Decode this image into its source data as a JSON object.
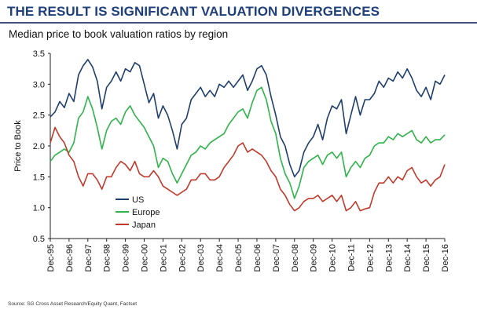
{
  "slide_title": "THE RESULT IS SIGNIFICANT VALUATION DIVERGENCES",
  "source": "Source: SG Cross Asset Research/Equity Quant, Factset",
  "colors": {
    "title": "#1f3f7a",
    "US": "#1f3e6e",
    "Europe": "#2fb34a",
    "Japan": "#c0392b"
  },
  "chart_data": {
    "type": "line",
    "title": "Median price to book valuation ratios by region",
    "ylabel": "Price to Book",
    "xlabel": "",
    "ylim": [
      0.5,
      3.5
    ],
    "yticks": [
      "0.5",
      "1.0",
      "1.5",
      "2.0",
      "2.5",
      "3.0",
      "3.5"
    ],
    "xlim": [
      "1995-12",
      "2016-12"
    ],
    "xticks": [
      "Dec-95",
      "Dec-96",
      "Dec-97",
      "Dec-98",
      "Dec-99",
      "Dec-00",
      "Dec-01",
      "Dec-02",
      "Dec-03",
      "Dec-04",
      "Dec-05",
      "Dec-06",
      "Dec-07",
      "Dec-08",
      "Dec-09",
      "Dec-10",
      "Dec-11",
      "Dec-12",
      "Dec-13",
      "Dec-14",
      "Dec-15",
      "Dec-16"
    ],
    "grid": false,
    "legend": "bottom-left",
    "series": [
      {
        "name": "US",
        "color": "#1f3e6e",
        "x": [
          "1995-12",
          "1996-03",
          "1996-06",
          "1996-09",
          "1996-12",
          "1997-03",
          "1997-06",
          "1997-09",
          "1997-12",
          "1998-03",
          "1998-06",
          "1998-09",
          "1998-12",
          "1999-03",
          "1999-06",
          "1999-09",
          "1999-12",
          "2000-03",
          "2000-06",
          "2000-09",
          "2000-12",
          "2001-03",
          "2001-06",
          "2001-09",
          "2001-12",
          "2002-03",
          "2002-06",
          "2002-09",
          "2002-12",
          "2003-03",
          "2003-06",
          "2003-09",
          "2003-12",
          "2004-03",
          "2004-06",
          "2004-09",
          "2004-12",
          "2005-03",
          "2005-06",
          "2005-09",
          "2005-12",
          "2006-03",
          "2006-06",
          "2006-09",
          "2006-12",
          "2007-03",
          "2007-06",
          "2007-09",
          "2007-12",
          "2008-03",
          "2008-06",
          "2008-09",
          "2008-12",
          "2009-03",
          "2009-06",
          "2009-09",
          "2009-12",
          "2010-03",
          "2010-06",
          "2010-09",
          "2010-12",
          "2011-03",
          "2011-06",
          "2011-09",
          "2011-12",
          "2012-03",
          "2012-06",
          "2012-09",
          "2012-12",
          "2013-03",
          "2013-06",
          "2013-09",
          "2013-12",
          "2014-03",
          "2014-06",
          "2014-09",
          "2014-12",
          "2015-03",
          "2015-06",
          "2015-09",
          "2015-12",
          "2016-03",
          "2016-06",
          "2016-09",
          "2016-12"
        ],
        "values": [
          2.47,
          2.55,
          2.72,
          2.62,
          2.85,
          2.72,
          3.15,
          3.3,
          3.4,
          3.28,
          3.05,
          2.6,
          2.95,
          3.05,
          3.2,
          3.05,
          3.25,
          3.2,
          3.35,
          3.3,
          3.0,
          2.7,
          2.85,
          2.45,
          2.65,
          2.5,
          2.25,
          1.95,
          2.35,
          2.45,
          2.75,
          2.85,
          2.95,
          2.8,
          2.9,
          2.8,
          3.0,
          2.95,
          3.05,
          2.95,
          3.05,
          3.15,
          2.9,
          3.05,
          3.25,
          3.3,
          3.15,
          2.8,
          2.5,
          2.15,
          2.0,
          1.7,
          1.5,
          1.6,
          1.9,
          2.05,
          2.15,
          2.35,
          2.1,
          2.45,
          2.65,
          2.6,
          2.75,
          2.2,
          2.5,
          2.8,
          2.5,
          2.75,
          2.75,
          2.85,
          3.05,
          2.95,
          3.1,
          3.05,
          3.2,
          3.1,
          3.25,
          3.1,
          2.9,
          2.8,
          2.95,
          2.75,
          3.05,
          3.0,
          3.15
        ]
      },
      {
        "name": "Europe",
        "color": "#2fb34a",
        "x": [
          "1995-12",
          "1996-03",
          "1996-06",
          "1996-09",
          "1996-12",
          "1997-03",
          "1997-06",
          "1997-09",
          "1997-12",
          "1998-03",
          "1998-06",
          "1998-09",
          "1998-12",
          "1999-03",
          "1999-06",
          "1999-09",
          "1999-12",
          "2000-03",
          "2000-06",
          "2000-09",
          "2000-12",
          "2001-03",
          "2001-06",
          "2001-09",
          "2001-12",
          "2002-03",
          "2002-06",
          "2002-09",
          "2002-12",
          "2003-03",
          "2003-06",
          "2003-09",
          "2003-12",
          "2004-03",
          "2004-06",
          "2004-09",
          "2004-12",
          "2005-03",
          "2005-06",
          "2005-09",
          "2005-12",
          "2006-03",
          "2006-06",
          "2006-09",
          "2006-12",
          "2007-03",
          "2007-06",
          "2007-09",
          "2007-12",
          "2008-03",
          "2008-06",
          "2008-09",
          "2008-12",
          "2009-03",
          "2009-06",
          "2009-09",
          "2009-12",
          "2010-03",
          "2010-06",
          "2010-09",
          "2010-12",
          "2011-03",
          "2011-06",
          "2011-09",
          "2011-12",
          "2012-03",
          "2012-06",
          "2012-09",
          "2012-12",
          "2013-03",
          "2013-06",
          "2013-09",
          "2013-12",
          "2014-03",
          "2014-06",
          "2014-09",
          "2014-12",
          "2015-03",
          "2015-06",
          "2015-09",
          "2015-12",
          "2016-03",
          "2016-06",
          "2016-09",
          "2016-12"
        ],
        "values": [
          1.75,
          1.85,
          1.9,
          1.95,
          1.9,
          2.05,
          2.45,
          2.55,
          2.8,
          2.6,
          2.3,
          1.95,
          2.25,
          2.4,
          2.45,
          2.35,
          2.55,
          2.65,
          2.5,
          2.4,
          2.3,
          2.15,
          2.0,
          1.65,
          1.8,
          1.75,
          1.55,
          1.4,
          1.55,
          1.7,
          1.85,
          1.9,
          2.0,
          1.95,
          2.05,
          2.1,
          2.15,
          2.2,
          2.35,
          2.45,
          2.55,
          2.6,
          2.45,
          2.7,
          2.9,
          2.95,
          2.75,
          2.4,
          2.2,
          1.8,
          1.55,
          1.4,
          1.15,
          1.35,
          1.65,
          1.75,
          1.8,
          1.85,
          1.7,
          1.85,
          1.9,
          1.8,
          1.9,
          1.5,
          1.65,
          1.75,
          1.65,
          1.8,
          1.85,
          2.0,
          2.05,
          2.05,
          2.15,
          2.1,
          2.2,
          2.15,
          2.2,
          2.25,
          2.1,
          2.05,
          2.15,
          2.05,
          2.1,
          2.1,
          2.18
        ]
      },
      {
        "name": "Japan",
        "color": "#c0392b",
        "x": [
          "1995-12",
          "1996-03",
          "1996-06",
          "1996-09",
          "1996-12",
          "1997-03",
          "1997-06",
          "1997-09",
          "1997-12",
          "1998-03",
          "1998-06",
          "1998-09",
          "1998-12",
          "1999-03",
          "1999-06",
          "1999-09",
          "1999-12",
          "2000-03",
          "2000-06",
          "2000-09",
          "2000-12",
          "2001-03",
          "2001-06",
          "2001-09",
          "2001-12",
          "2002-03",
          "2002-06",
          "2002-09",
          "2002-12",
          "2003-03",
          "2003-06",
          "2003-09",
          "2003-12",
          "2004-03",
          "2004-06",
          "2004-09",
          "2004-12",
          "2005-03",
          "2005-06",
          "2005-09",
          "2005-12",
          "2006-03",
          "2006-06",
          "2006-09",
          "2006-12",
          "2007-03",
          "2007-06",
          "2007-09",
          "2007-12",
          "2008-03",
          "2008-06",
          "2008-09",
          "2008-12",
          "2009-03",
          "2009-06",
          "2009-09",
          "2009-12",
          "2010-03",
          "2010-06",
          "2010-09",
          "2010-12",
          "2011-03",
          "2011-06",
          "2011-09",
          "2011-12",
          "2012-03",
          "2012-06",
          "2012-09",
          "2012-12",
          "2013-03",
          "2013-06",
          "2013-09",
          "2013-12",
          "2014-03",
          "2014-06",
          "2014-09",
          "2014-12",
          "2015-03",
          "2015-06",
          "2015-09",
          "2015-12",
          "2016-03",
          "2016-06",
          "2016-09",
          "2016-12"
        ],
        "values": [
          2.05,
          2.3,
          2.15,
          2.05,
          1.85,
          1.75,
          1.5,
          1.35,
          1.55,
          1.55,
          1.45,
          1.3,
          1.5,
          1.5,
          1.65,
          1.75,
          1.7,
          1.6,
          1.75,
          1.55,
          1.5,
          1.5,
          1.6,
          1.5,
          1.35,
          1.3,
          1.25,
          1.2,
          1.25,
          1.3,
          1.45,
          1.45,
          1.55,
          1.55,
          1.45,
          1.45,
          1.5,
          1.65,
          1.75,
          1.85,
          2.0,
          2.05,
          1.9,
          1.95,
          1.9,
          1.85,
          1.75,
          1.6,
          1.5,
          1.3,
          1.2,
          1.05,
          0.95,
          1.0,
          1.1,
          1.15,
          1.15,
          1.2,
          1.1,
          1.15,
          1.2,
          1.1,
          1.2,
          0.95,
          1.0,
          1.1,
          0.95,
          0.98,
          1.0,
          1.25,
          1.4,
          1.4,
          1.5,
          1.4,
          1.5,
          1.45,
          1.6,
          1.65,
          1.5,
          1.4,
          1.45,
          1.35,
          1.45,
          1.5,
          1.7
        ]
      }
    ]
  }
}
